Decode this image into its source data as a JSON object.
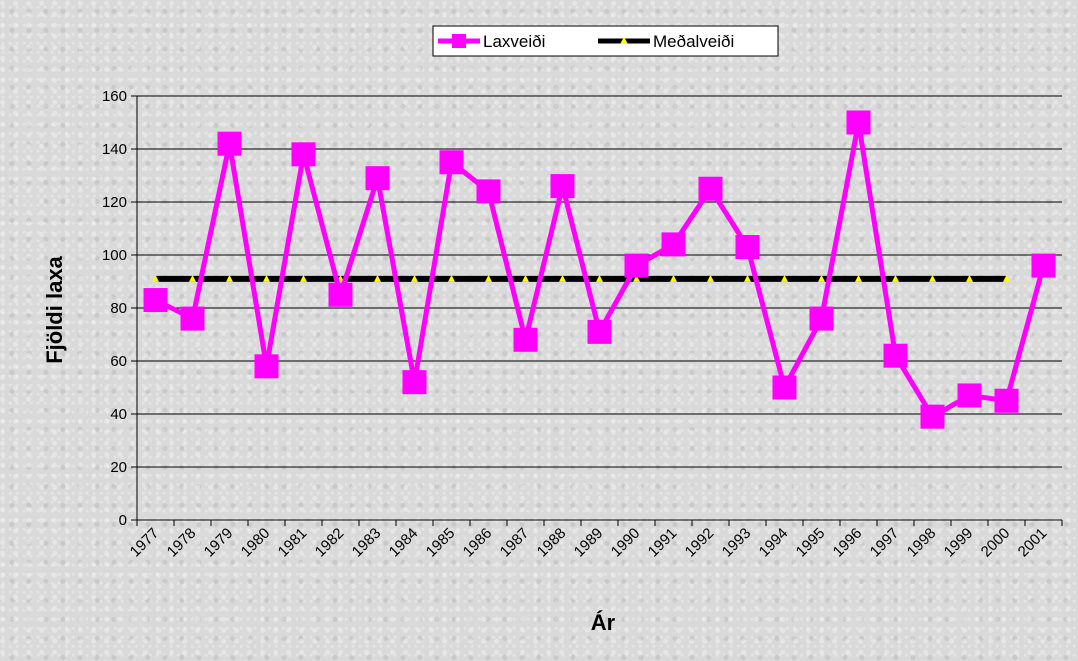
{
  "chart_data": {
    "type": "line",
    "xlabel": "Ár",
    "ylabel": "Fjöldi laxa",
    "ylim": [
      0,
      160
    ],
    "yticks": [
      0,
      20,
      40,
      60,
      80,
      100,
      120,
      140,
      160
    ],
    "grid": "horizontal",
    "legend_position": "top",
    "categories": [
      "1977",
      "1978",
      "1979",
      "1980",
      "1981",
      "1982",
      "1983",
      "1984",
      "1985",
      "1986",
      "1987",
      "1988",
      "1989",
      "1990",
      "1991",
      "1992",
      "1993",
      "1994",
      "1995",
      "1996",
      "1997",
      "1998",
      "1999",
      "2000",
      "2001"
    ],
    "series": [
      {
        "name": "Laxveiði",
        "color": "#ff00ff",
        "marker": "square",
        "values": [
          83,
          76,
          142,
          58,
          138,
          85,
          129,
          52,
          135,
          124,
          68,
          126,
          71,
          96,
          104,
          125,
          103,
          50,
          76,
          150,
          62,
          39,
          47,
          45,
          96
        ]
      },
      {
        "name": "Meðalveiði",
        "color": "#000000",
        "marker_color": "#ffff00",
        "marker": "triangle",
        "values": [
          91,
          91,
          91,
          91,
          91,
          91,
          91,
          91,
          91,
          91,
          91,
          91,
          91,
          91,
          91,
          91,
          91,
          91,
          91,
          91,
          91,
          91,
          91,
          91,
          null
        ]
      }
    ]
  }
}
